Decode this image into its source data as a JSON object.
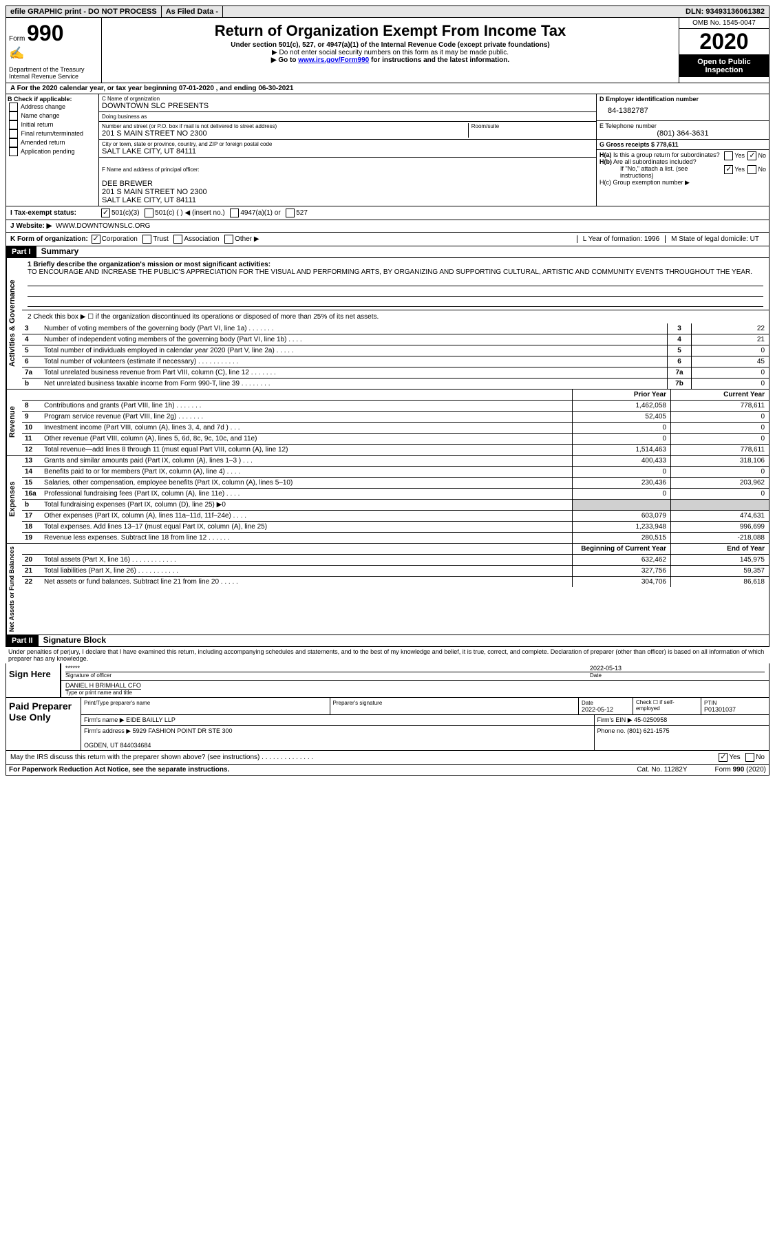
{
  "topbar": {
    "efile": "efile GRAPHIC print - DO NOT PROCESS",
    "asfiled": "As Filed Data -",
    "dln": "DLN: 93493136061382"
  },
  "header": {
    "form_prefix": "Form",
    "form_num": "990",
    "dept": "Department of the Treasury\nInternal Revenue Service",
    "title": "Return of Organization Exempt From Income Tax",
    "sub1": "Under section 501(c), 527, or 4947(a)(1) of the Internal Revenue Code (except private foundations)",
    "sub2": "▶ Do not enter social security numbers on this form as it may be made public.",
    "sub3_pre": "▶ Go to ",
    "sub3_link": "www.irs.gov/Form990",
    "sub3_post": " for instructions and the latest information.",
    "omb": "OMB No. 1545-0047",
    "year": "2020",
    "open": "Open to Public Inspection"
  },
  "rowA": "A   For the 2020 calendar year, or tax year beginning 07-01-2020   , and ending 06-30-2021",
  "colB": {
    "header": "B Check if applicable:",
    "items": [
      "Address change",
      "Name change",
      "Initial return",
      "Final return/terminated",
      "Amended return",
      "Application pending"
    ]
  },
  "org": {
    "c_lbl": "C Name of organization",
    "c_val": "DOWNTOWN SLC PRESENTS",
    "dba_lbl": "Doing business as",
    "dba_val": "",
    "addr_lbl": "Number and street (or P.O. box if mail is not delivered to street address)",
    "room_lbl": "Room/suite",
    "addr_val": "201 S MAIN STREET NO 2300",
    "city_lbl": "City or town, state or province, country, and ZIP or foreign postal code",
    "city_val": "SALT LAKE CITY, UT  84111",
    "f_lbl": "F  Name and address of principal officer:",
    "f_val": "DEE BREWER\n201 S MAIN STREET NO 2300\nSALT LAKE CITY, UT  84111"
  },
  "right": {
    "d_lbl": "D Employer identification number",
    "d_val": "84-1382787",
    "e_lbl": "E Telephone number",
    "e_val": "(801) 364-3631",
    "g_lbl": "G Gross receipts $ 778,611",
    "ha": "H(a)  Is this a group return for subordinates?",
    "hb": "H(b)  Are all subordinates included?",
    "hb2": "If \"No,\" attach a list. (see instructions)",
    "hc": "H(c)  Group exemption number ▶"
  },
  "rowI": {
    "label": "I   Tax-exempt status:",
    "opts": [
      "501(c)(3)",
      "501(c) (   ) ◀ (insert no.)",
      "4947(a)(1) or",
      "527"
    ]
  },
  "rowJ": {
    "label": "J   Website: ▶",
    "val": "WWW.DOWNTOWNSLC.ORG"
  },
  "rowK": {
    "label": "K Form of organization:",
    "opts": [
      "Corporation",
      "Trust",
      "Association",
      "Other ▶"
    ],
    "l": "L Year of formation: 1996",
    "m": "M State of legal domicile: UT"
  },
  "part1": {
    "header": "Part I",
    "title": "Summary",
    "q1_lbl": "1  Briefly describe the organization's mission or most significant activities:",
    "q1_val": "TO ENCOURAGE AND INCREASE THE PUBLIC'S APPRECIATION FOR THE VISUAL AND PERFORMING ARTS, BY ORGANIZING AND SUPPORTING CULTURAL, ARTISTIC AND COMMUNITY EVENTS THROUGHOUT THE YEAR.",
    "q2": "2   Check this box ▶ ☐ if the organization discontinued its operations or disposed of more than 25% of its net assets.",
    "vert_ag": "Activities & Governance",
    "vert_rev": "Revenue",
    "vert_exp": "Expenses",
    "vert_net": "Net Assets or Fund Balances",
    "lines_ag": [
      {
        "n": "3",
        "d": "Number of voting members of the governing body (Part VI, line 1a)  .   .   .   .   .   .   .",
        "box": "3",
        "v": "22"
      },
      {
        "n": "4",
        "d": "Number of independent voting members of the governing body (Part VI, line 1b)  .   .   .   .",
        "box": "4",
        "v": "21"
      },
      {
        "n": "5",
        "d": "Total number of individuals employed in calendar year 2020 (Part V, line 2a)  .   .   .   .   .",
        "box": "5",
        "v": "0"
      },
      {
        "n": "6",
        "d": "Total number of volunteers (estimate if necessary)  .   .   .   .   .   .   .   .   .   .   .",
        "box": "6",
        "v": "45"
      },
      {
        "n": "7a",
        "d": "Total unrelated business revenue from Part VIII, column (C), line 12  .   .   .   .   .   .   .",
        "box": "7a",
        "v": "0"
      },
      {
        "n": "b",
        "d": "Net unrelated business taxable income from Form 990-T, line 39  .   .   .   .   .   .   .   .",
        "box": "7b",
        "v": "0"
      }
    ],
    "py_header": "Prior Year",
    "cy_header": "Current Year",
    "lines_rev": [
      {
        "n": "8",
        "d": "Contributions and grants (Part VIII, line 1h)  .   .   .   .   .   .   .",
        "py": "1,462,058",
        "cy": "778,611"
      },
      {
        "n": "9",
        "d": "Program service revenue (Part VIII, line 2g)  .   .   .   .   .   .   .",
        "py": "52,405",
        "cy": "0"
      },
      {
        "n": "10",
        "d": "Investment income (Part VIII, column (A), lines 3, 4, and 7d )  .   .   .",
        "py": "0",
        "cy": "0"
      },
      {
        "n": "11",
        "d": "Other revenue (Part VIII, column (A), lines 5, 6d, 8c, 9c, 10c, and 11e)",
        "py": "0",
        "cy": "0"
      },
      {
        "n": "12",
        "d": "Total revenue—add lines 8 through 11 (must equal Part VIII, column (A), line 12)",
        "py": "1,514,463",
        "cy": "778,611"
      }
    ],
    "lines_exp": [
      {
        "n": "13",
        "d": "Grants and similar amounts paid (Part IX, column (A), lines 1–3 )  .   .   .",
        "py": "400,433",
        "cy": "318,106"
      },
      {
        "n": "14",
        "d": "Benefits paid to or for members (Part IX, column (A), line 4)  .   .   .   .",
        "py": "0",
        "cy": "0"
      },
      {
        "n": "15",
        "d": "Salaries, other compensation, employee benefits (Part IX, column (A), lines 5–10)",
        "py": "230,436",
        "cy": "203,962"
      },
      {
        "n": "16a",
        "d": "Professional fundraising fees (Part IX, column (A), line 11e)  .   .   .   .",
        "py": "0",
        "cy": "0"
      },
      {
        "n": "b",
        "d": "Total fundraising expenses (Part IX, column (D), line 25) ▶0",
        "py": "",
        "cy": "",
        "grey": true
      },
      {
        "n": "17",
        "d": "Other expenses (Part IX, column (A), lines 11a–11d, 11f–24e)  .   .   .   .",
        "py": "603,079",
        "cy": "474,631"
      },
      {
        "n": "18",
        "d": "Total expenses. Add lines 13–17 (must equal Part IX, column (A), line 25)",
        "py": "1,233,948",
        "cy": "996,699"
      },
      {
        "n": "19",
        "d": "Revenue less expenses. Subtract line 18 from line 12  .   .   .   .   .   .",
        "py": "280,515",
        "cy": "-218,088"
      }
    ],
    "by_header": "Beginning of Current Year",
    "ey_header": "End of Year",
    "lines_net": [
      {
        "n": "20",
        "d": "Total assets (Part X, line 16)  .   .   .   .   .   .   .   .   .   .   .   .",
        "py": "632,462",
        "cy": "145,975"
      },
      {
        "n": "21",
        "d": "Total liabilities (Part X, line 26)  .   .   .   .   .   .   .   .   .   .   .",
        "py": "327,756",
        "cy": "59,357"
      },
      {
        "n": "22",
        "d": "Net assets or fund balances. Subtract line 21 from line 20  .   .   .   .   .",
        "py": "304,706",
        "cy": "86,618"
      }
    ]
  },
  "part2": {
    "header": "Part II",
    "title": "Signature Block",
    "perjury": "Under penalties of perjury, I declare that I have examined this return, including accompanying schedules and statements, and to the best of my knowledge and belief, it is true, correct, and complete. Declaration of preparer (other than officer) is based on all information of which preparer has any knowledge.",
    "sign_here": "Sign Here",
    "stars": "******",
    "sig_officer": "Signature of officer",
    "sig_date": "2022-05-13",
    "date_lbl": "Date",
    "name_title": "DANIEL H BRIMHALL  CFO",
    "name_lbl": "Type or print name and title",
    "paid": "Paid Preparer Use Only",
    "ptname_lbl": "Print/Type preparer's name",
    "psig_lbl": "Preparer's signature",
    "pdate_lbl": "Date",
    "pdate": "2022-05-12",
    "check_lbl": "Check ☐ if self-employed",
    "ptin_lbl": "PTIN",
    "ptin": "P01301037",
    "firm_lbl": "Firm's name    ▶",
    "firm": "EIDE BAILLY LLP",
    "fein_lbl": "Firm's EIN ▶",
    "fein": "45-0250958",
    "faddr_lbl": "Firm's address ▶",
    "faddr": "5929 FASHION POINT DR STE 300\n\nOGDEN, UT  844034684",
    "phone_lbl": "Phone no.",
    "phone": "(801) 621-1575",
    "discuss": "May the IRS discuss this return with the preparer shown above? (see instructions)  .   .   .   .   .   .   .   .   .   .   .   .   .   ."
  },
  "footer": {
    "pra": "For Paperwork Reduction Act Notice, see the separate instructions.",
    "cat": "Cat. No. 11282Y",
    "form": "Form 990 (2020)"
  }
}
